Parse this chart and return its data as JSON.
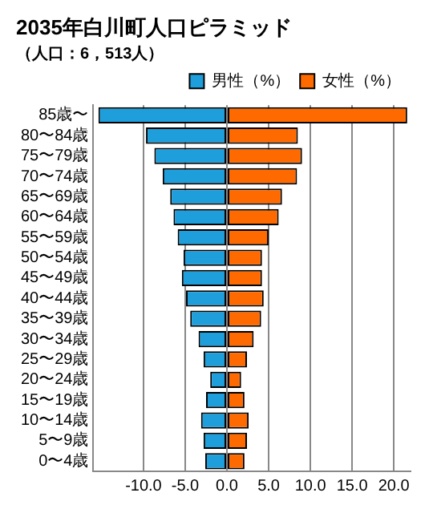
{
  "chart_data": {
    "type": "bar",
    "title": "2035年白川町人口ピラミッド",
    "subtitle": "（人口：6，513人）",
    "orientation": "horizontal",
    "stacked": true,
    "categories": [
      "85歳〜",
      "80〜84歳",
      "75〜79歳",
      "70〜74歳",
      "65〜69歳",
      "60〜64歳",
      "55〜59歳",
      "50〜54歳",
      "45〜49歳",
      "40〜44歳",
      "35〜39歳",
      "30〜34歳",
      "25〜29歳",
      "20〜24歳",
      "15〜19歳",
      "10〜14歳",
      "5〜9歳",
      "0〜4歳"
    ],
    "series": [
      {
        "name": "男性（%）",
        "color": "#1e9fdc",
        "values": [
          -15.4,
          -9.7,
          -8.7,
          -7.7,
          -6.8,
          -6.4,
          -5.9,
          -5.2,
          -5.4,
          -4.9,
          -4.4,
          -3.4,
          -2.8,
          -2.0,
          -2.5,
          -3.1,
          -2.8,
          -2.6
        ]
      },
      {
        "name": "女性（%）",
        "color": "#ff6a00",
        "values": [
          21.6,
          8.5,
          9.0,
          8.4,
          6.6,
          6.2,
          5.0,
          4.2,
          4.2,
          4.4,
          4.1,
          3.2,
          2.4,
          1.7,
          2.1,
          2.6,
          2.4,
          2.1
        ]
      }
    ],
    "xlim": [
      -16,
      22
    ],
    "xticks": [
      {
        "value": -10,
        "label": "-10.0"
      },
      {
        "value": -5,
        "label": "-5.0"
      },
      {
        "value": 0,
        "label": "0.0"
      },
      {
        "value": 5,
        "label": "5.0"
      },
      {
        "value": 10,
        "label": "10.0"
      },
      {
        "value": 15,
        "label": "15.0"
      },
      {
        "value": 20,
        "label": "20.0"
      }
    ],
    "grid": "x",
    "legend": "top right"
  }
}
